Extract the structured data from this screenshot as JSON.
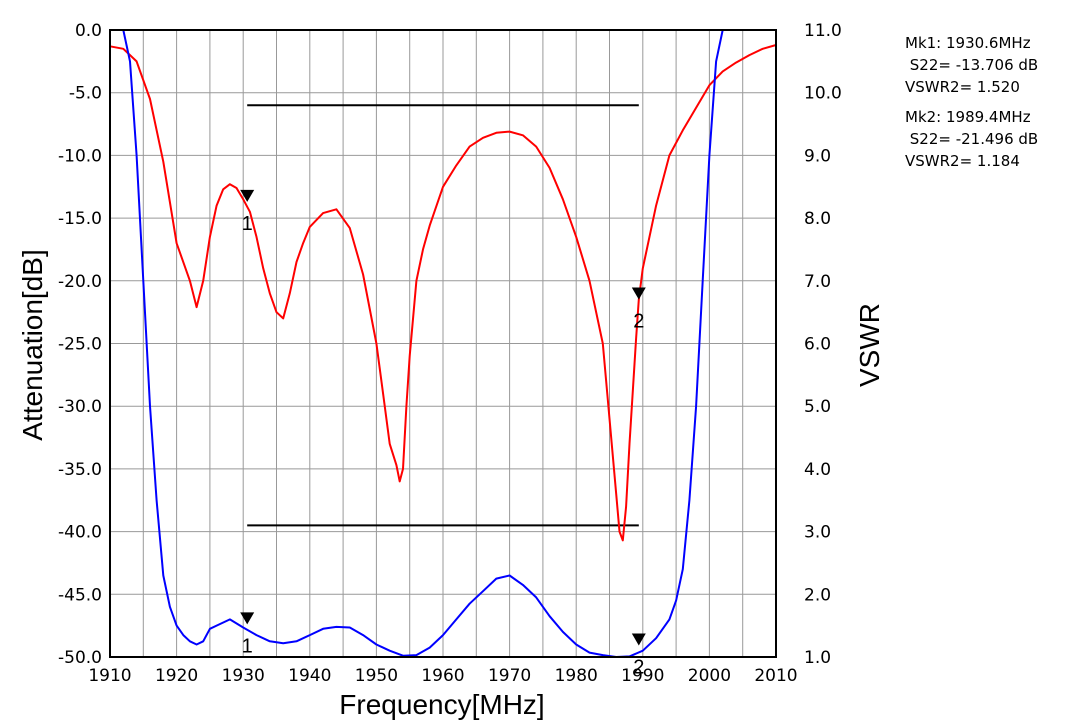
{
  "chart_data": {
    "type": "line",
    "xlabel": "Frequency[MHz]",
    "ylabel_left": "Attenuation[dB]",
    "ylabel_right": "VSWR",
    "xlim": [
      1910,
      2010
    ],
    "ylim_left": [
      -50,
      0
    ],
    "ylim_right": [
      1,
      11
    ],
    "xticks": [
      "1910",
      "1920",
      "1930",
      "1940",
      "1950",
      "1960",
      "1970",
      "1980",
      "1990",
      "2000",
      "2010"
    ],
    "yticks_left": [
      "0.0",
      "-5.0",
      "-10.0",
      "-15.0",
      "-20.0",
      "-25.0",
      "-30.0",
      "-35.0",
      "-40.0",
      "-45.0",
      "-50.0"
    ],
    "yticks_right": [
      "11.0",
      "10.0",
      "9.0",
      "8.0",
      "7.0",
      "6.0",
      "5.0",
      "4.0",
      "3.0",
      "2.0",
      "1.0"
    ],
    "grid": true,
    "series": [
      {
        "name": "S22",
        "axis": "left",
        "color": "#ff0000",
        "x": [
          1910,
          1912,
          1914,
          1916,
          1918,
          1920,
          1922,
          1923,
          1924,
          1925,
          1926,
          1927,
          1928,
          1929,
          1930,
          1931,
          1932,
          1933,
          1934,
          1935,
          1936,
          1937,
          1938,
          1939,
          1940,
          1942,
          1944,
          1946,
          1948,
          1950,
          1951,
          1952,
          1953,
          1953.5,
          1954,
          1954.5,
          1955,
          1956,
          1957,
          1958,
          1960,
          1962,
          1964,
          1966,
          1968,
          1970,
          1972,
          1974,
          1976,
          1978,
          1980,
          1982,
          1984,
          1985,
          1986,
          1986.5,
          1987,
          1987.5,
          1988,
          1989,
          1989.4,
          1990,
          1992,
          1994,
          1996,
          1998,
          2000,
          2002,
          2004,
          2006,
          2008,
          2010
        ],
        "y": [
          -1.3,
          -1.5,
          -2.5,
          -5.5,
          -10.5,
          -17,
          -20,
          -22.1,
          -20,
          -16.5,
          -14,
          -12.7,
          -12.3,
          -12.6,
          -13.5,
          -14.5,
          -16.5,
          -19,
          -21,
          -22.5,
          -23,
          -21,
          -18.5,
          -17,
          -15.7,
          -14.6,
          -14.3,
          -15.8,
          -19.5,
          -25,
          -29,
          -33,
          -34.7,
          -36,
          -35,
          -30,
          -26,
          -20,
          -17.5,
          -15.6,
          -12.5,
          -10.8,
          -9.3,
          -8.6,
          -8.2,
          -8.1,
          -8.4,
          -9.3,
          -11,
          -13.5,
          -16.5,
          -20,
          -25,
          -31,
          -37,
          -40,
          -40.7,
          -38,
          -33,
          -24.6,
          -21.5,
          -19,
          -14,
          -10,
          -8,
          -6.2,
          -4.4,
          -3.3,
          -2.6,
          -2,
          -1.5,
          -1.2
        ]
      },
      {
        "name": "VSWR2",
        "axis": "right",
        "color": "#0000ff",
        "x": [
          1910,
          1912,
          1913,
          1914,
          1915,
          1916,
          1917,
          1918,
          1919,
          1920,
          1921,
          1922,
          1923,
          1924,
          1925,
          1926,
          1928,
          1930,
          1932,
          1934,
          1936,
          1938,
          1940,
          1942,
          1944,
          1946,
          1948,
          1950,
          1952,
          1954,
          1956,
          1958,
          1960,
          1962,
          1964,
          1966,
          1968,
          1970,
          1972,
          1974,
          1976,
          1978,
          1980,
          1982,
          1984,
          1986,
          1988,
          1990,
          1992,
          1994,
          1995,
          1996,
          1997,
          1998,
          1999,
          2000,
          2001,
          2002,
          2003,
          2004,
          2006,
          2008,
          2010
        ],
        "y": [
          11,
          11,
          10.5,
          9,
          7,
          5,
          3.5,
          2.3,
          1.8,
          1.5,
          1.35,
          1.25,
          1.2,
          1.25,
          1.45,
          1.5,
          1.6,
          1.47,
          1.35,
          1.25,
          1.22,
          1.25,
          1.35,
          1.45,
          1.48,
          1.47,
          1.35,
          1.2,
          1.1,
          1.02,
          1.03,
          1.15,
          1.35,
          1.6,
          1.85,
          2.05,
          2.25,
          2.3,
          2.15,
          1.95,
          1.65,
          1.4,
          1.2,
          1.07,
          1.03,
          1,
          1.01,
          1.1,
          1.3,
          1.6,
          1.9,
          2.4,
          3.5,
          5,
          7,
          9,
          10.5,
          11,
          11,
          11,
          11,
          11,
          11
        ]
      }
    ],
    "reference_lines": [
      {
        "axis": "left",
        "y": -6,
        "x": [
          1930.6,
          1989.4
        ],
        "color": "#000000"
      },
      {
        "axis": "right",
        "y": 3.1,
        "x": [
          1930.6,
          1989.4
        ],
        "color": "#000000"
      }
    ],
    "markers": [
      {
        "label": "1",
        "x": 1930.6,
        "s22": -13.706,
        "vswr": 1.52
      },
      {
        "label": "2",
        "x": 1989.4,
        "s22": -21.496,
        "vswr": 1.184
      }
    ]
  },
  "marker_readout": [
    {
      "line1": "Mk1: 1930.6MHz",
      "line2": " S22= -13.706 dB",
      "line3": "VSWR2= 1.520"
    },
    {
      "line1": "Mk2: 1989.4MHz",
      "line2": " S22= -21.496 dB",
      "line3": "VSWR2= 1.184"
    }
  ]
}
